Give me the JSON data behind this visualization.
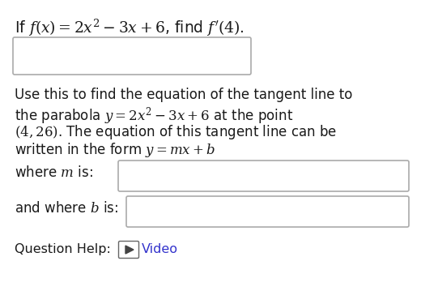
{
  "bg_color": "#ffffff",
  "text_color": "#1a1a1a",
  "box_color": "#ffffff",
  "box_edge_color": "#aaaaaa",
  "title_line": "If $f(x) = 2x^2 - 3x + 6$, find $f'(4)$.",
  "body_lines": [
    "Use this to find the equation of the tangent line to",
    "the parabola $y = 2x^2 - 3x + 6$ at the point",
    "$(4, 26)$. The equation of this tangent line can be",
    "written in the form $y = mx + b$"
  ],
  "where_m": "where $m$ is:",
  "where_b": "and where $b$ is:",
  "q_help": "Question Help:",
  "video_text": "Video",
  "video_color": "#3333cc",
  "font_size_title": 13.5,
  "font_size_body": 12.0,
  "font_size_bottom": 11.5
}
